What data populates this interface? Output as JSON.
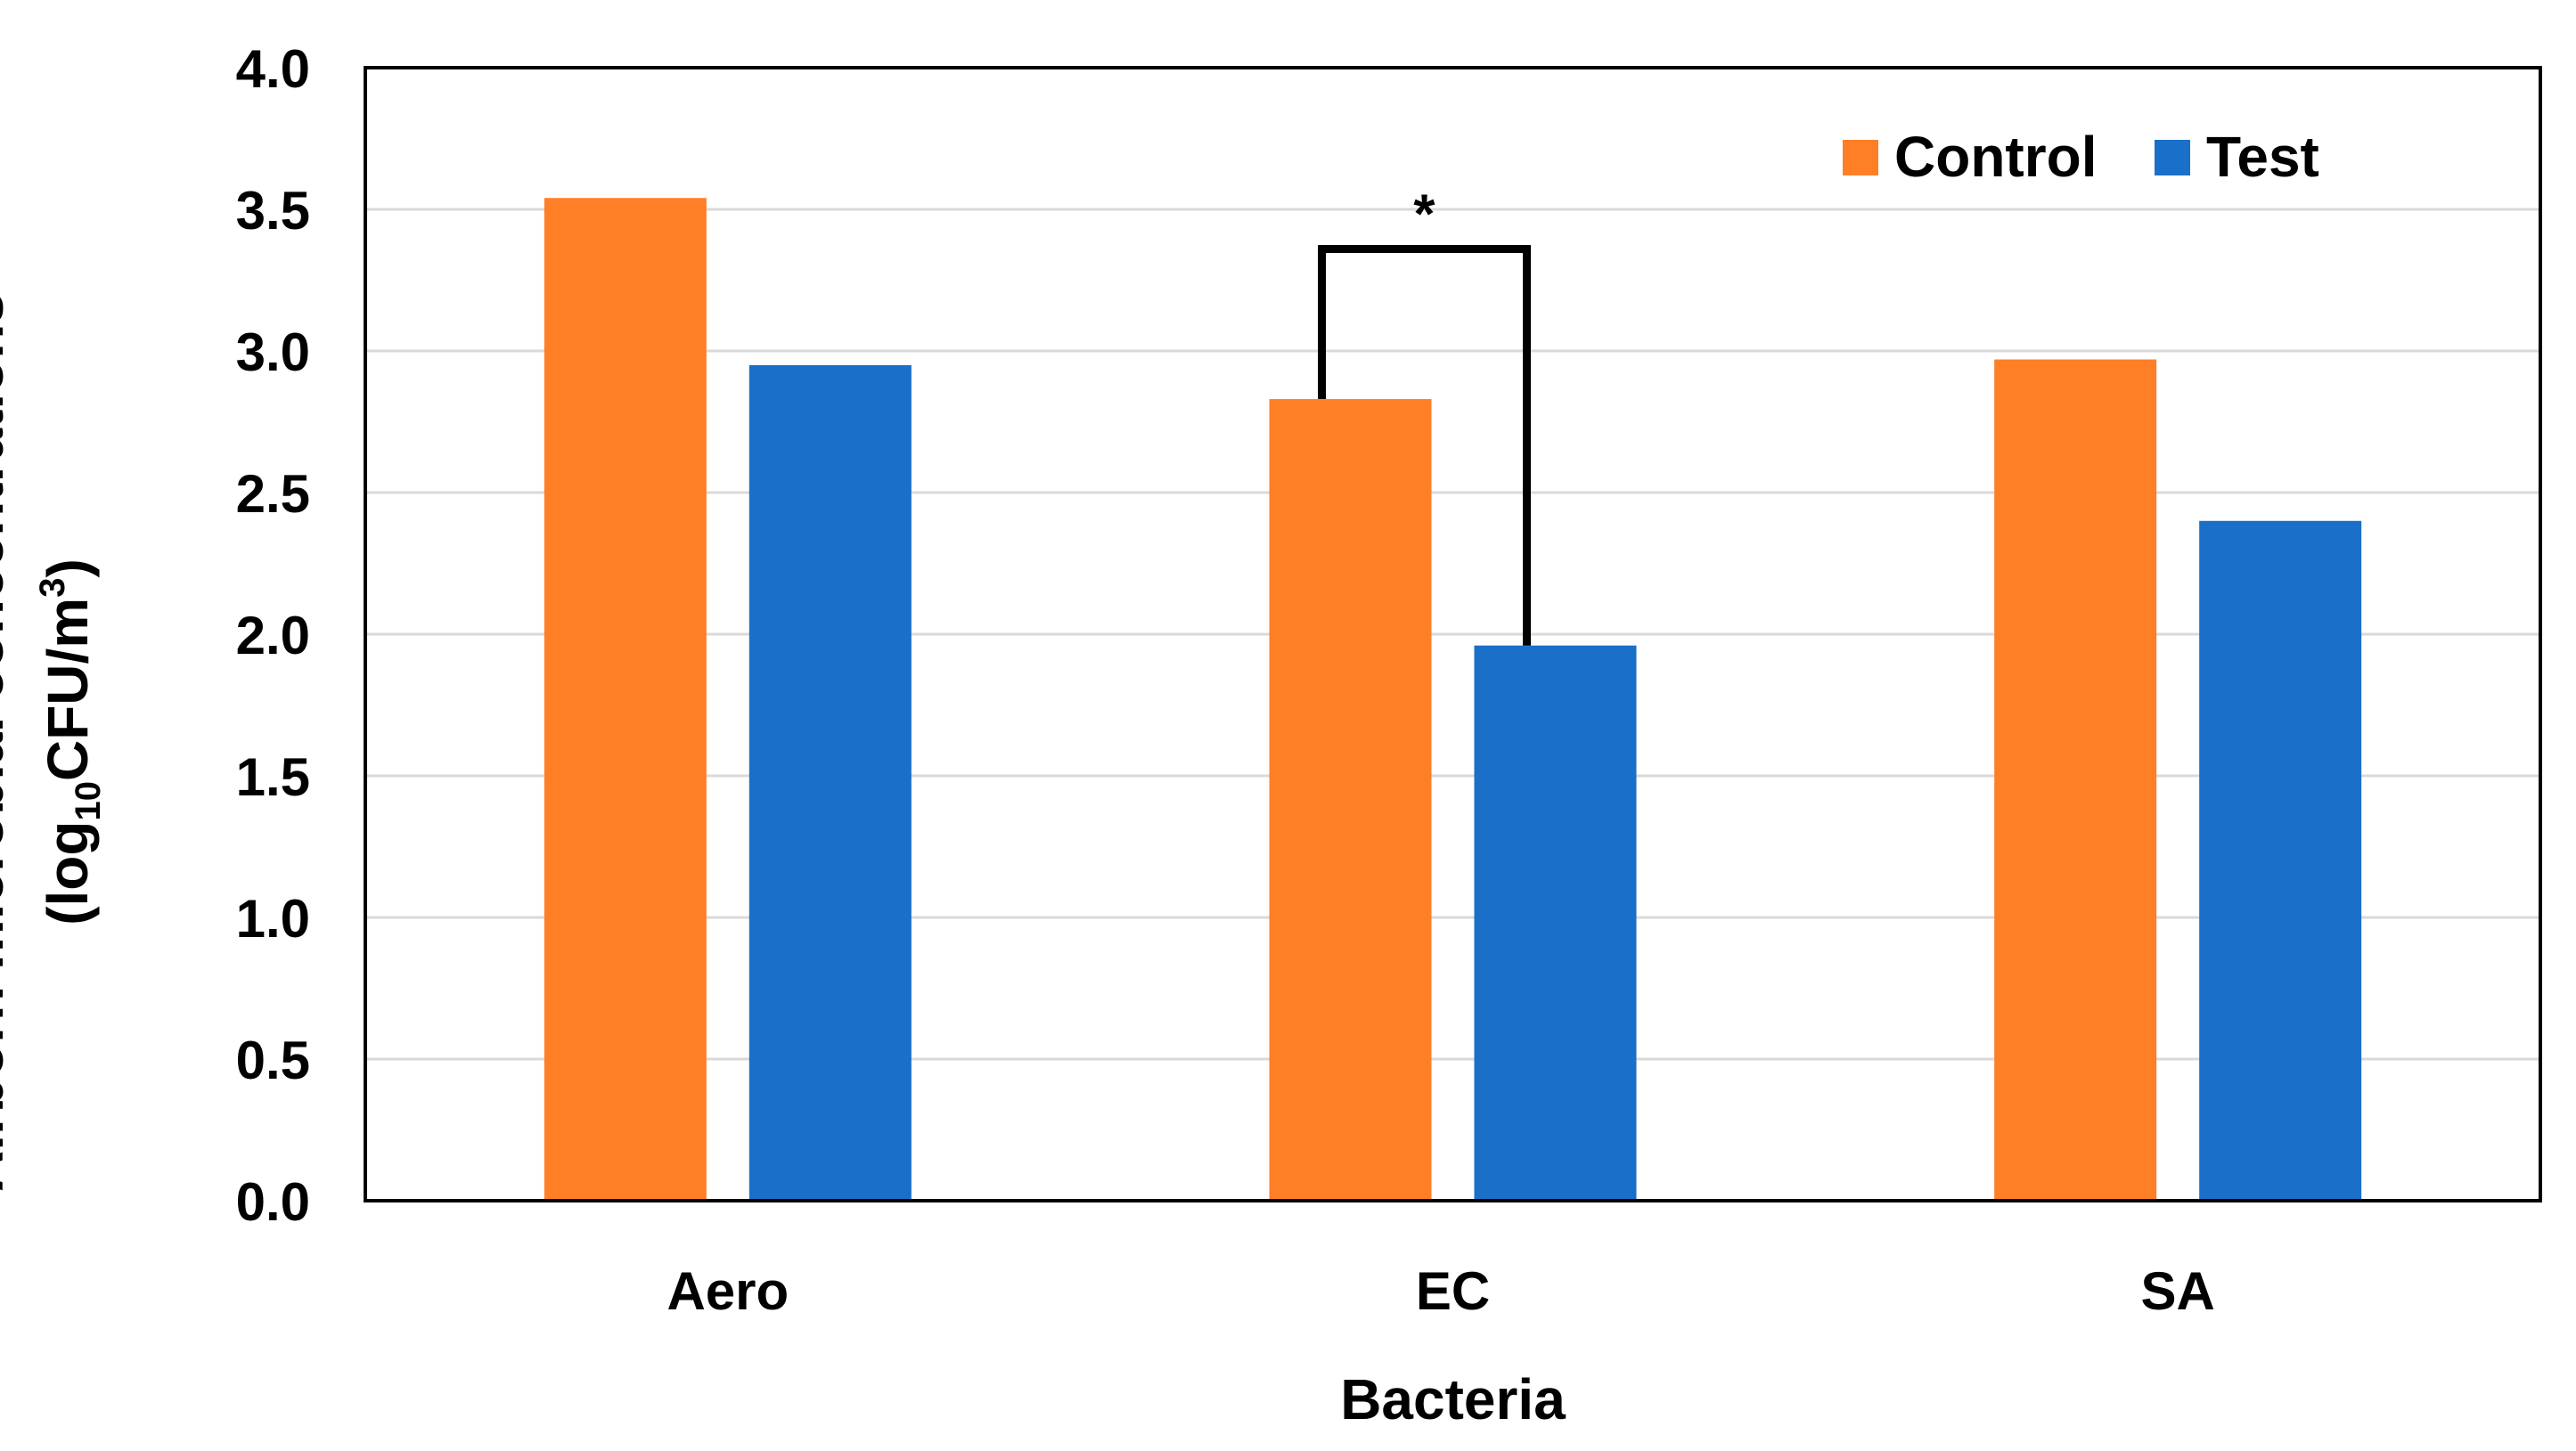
{
  "chart_data": {
    "type": "bar",
    "categories": [
      "Aero",
      "EC",
      "SA"
    ],
    "series": [
      {
        "name": "Control",
        "values": [
          3.54,
          2.83,
          2.97
        ],
        "color": "#FF7F27"
      },
      {
        "name": "Test",
        "values": [
          2.95,
          1.96,
          2.4
        ],
        "color": "#1A6FC8"
      }
    ],
    "xlabel": "Bacteria",
    "ylabel": {
      "line1": "Airborn microbial concentrations",
      "line2_prefix": "(log",
      "line2_sub": "10",
      "line2_mid": "CFU/m",
      "line2_sup": "3",
      "line2_suffix": ")"
    },
    "ylim": [
      0,
      4.0
    ],
    "yticks": [
      "0.0",
      "0.5",
      "1.0",
      "1.5",
      "2.0",
      "2.5",
      "3.0",
      "3.5",
      "4.0"
    ],
    "grid": true,
    "legend_position": "top-right",
    "annotation": {
      "text": "*",
      "category": "EC",
      "bracket_top": 3.36
    }
  }
}
